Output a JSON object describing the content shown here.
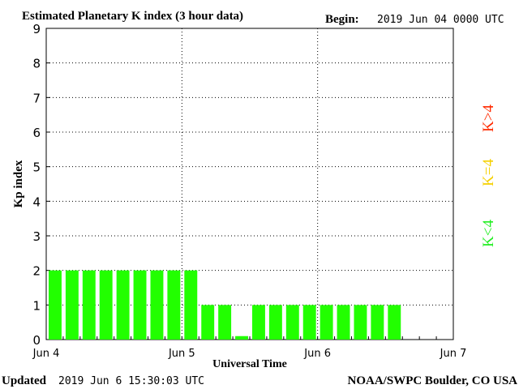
{
  "chart_data": {
    "type": "bar",
    "title": "Estimated Planetary K index (3 hour data)",
    "begin_label": "Begin:",
    "begin_value": "2019 Jun 04 0000 UTC",
    "xlabel": "Universal Time",
    "ylabel": "Kp index",
    "ylim": [
      0,
      9
    ],
    "yticks": [
      "0",
      "1",
      "2",
      "3",
      "4",
      "5",
      "6",
      "7",
      "8",
      "9"
    ],
    "xticks": [
      "Jun 4",
      "Jun 5",
      "Jun 6",
      "Jun 7"
    ],
    "grid": true,
    "bin_hours": 3,
    "total_bins": 24,
    "values": [
      2,
      2,
      2,
      2,
      2,
      2,
      2,
      2,
      2,
      1,
      1,
      0.1,
      1,
      1,
      1,
      1,
      1,
      1,
      1,
      1,
      1
    ],
    "legend": [
      {
        "label": "K<4",
        "color": "#22ee22"
      },
      {
        "label": "K=4",
        "color": "#f5d000"
      },
      {
        "label": "K>4",
        "color": "#ff2a00"
      }
    ],
    "bar_color": "#22ff00"
  },
  "footer": {
    "updated_label": "Updated",
    "updated_value": "2019 Jun  6 15:30:03 UTC",
    "source": "NOAA/SWPC Boulder, CO USA"
  }
}
